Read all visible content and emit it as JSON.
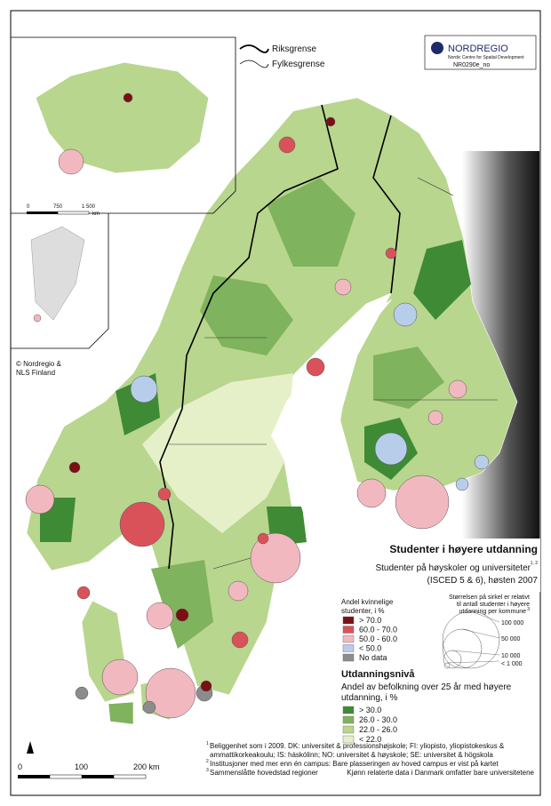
{
  "border_legend": {
    "national": "Riksgrense",
    "regional": "Fylkesgrense"
  },
  "logo": {
    "name": "NORDREGIO",
    "tagline": "Nordic Centre for Spatial Development",
    "code": "NR0290e_no"
  },
  "inset_scale": {
    "ticks": [
      "0",
      "750",
      "1 500"
    ],
    "unit": "km"
  },
  "copyright": [
    "© Nordregio &",
    "NLS Finland"
  ],
  "title": "Studenter i høyere utdanning",
  "subtitle": {
    "line1": "Studenter på høyskoler og universiteter",
    "note": "1, 2",
    "line2": "(ISCED 5 & 6), høsten 2007"
  },
  "size_legend": {
    "text": [
      "Størrelsen på sirkel er relativt",
      "til antall studenter i høyere",
      "utdanning per kommune"
    ],
    "note": "3",
    "labels": [
      "100 000",
      "50 000",
      "10 000",
      "< 1 000"
    ]
  },
  "female_legend": {
    "title": [
      "Andel kvinnelige",
      "studenter, i %"
    ],
    "items": [
      {
        "label": "> 70.0",
        "color": "#7a0f14"
      },
      {
        "label": "60.0 - 70.0",
        "color": "#d9525a"
      },
      {
        "label": "50.0 - 60.0",
        "color": "#f2b8c0"
      },
      {
        "label": "< 50.0",
        "color": "#b8cdea"
      },
      {
        "label": "No data",
        "color": "#8c8c8c"
      }
    ]
  },
  "education_legend": {
    "title": "Utdanningsnivå",
    "subtitle": [
      "Andel av befolkning over 25 år med høyere",
      "utdanning, i %"
    ],
    "items": [
      {
        "label": "> 30.0",
        "color": "#3f8a35"
      },
      {
        "label": "26.0 - 30.0",
        "color": "#7fb35d"
      },
      {
        "label": "22.0 - 26.0",
        "color": "#b8d68e"
      },
      {
        "label": "< 22.0",
        "color": "#e6f0c8"
      }
    ]
  },
  "footnotes": [
    "Beliggenhet som i 2009. DK: universitet & professionshøjskole; FI: yliopisto, yliopistokeskus &",
    "ammattikorkeakoulu; IS: háskólinn; NO: universitet & høyskole; SE: universitet & högskola",
    "Institusjoner med mer enn én campus: Bare plasseringen av hoved campus er vist på kartet",
    "Sammenslåtte hovedstad regioner",
    "Kjønn relaterte data i Danmark omfatter bare universitetene"
  ],
  "footnote_marks": [
    "1",
    "2",
    "3"
  ],
  "scale": {
    "ticks": [
      "0",
      "100",
      "200 km"
    ]
  }
}
